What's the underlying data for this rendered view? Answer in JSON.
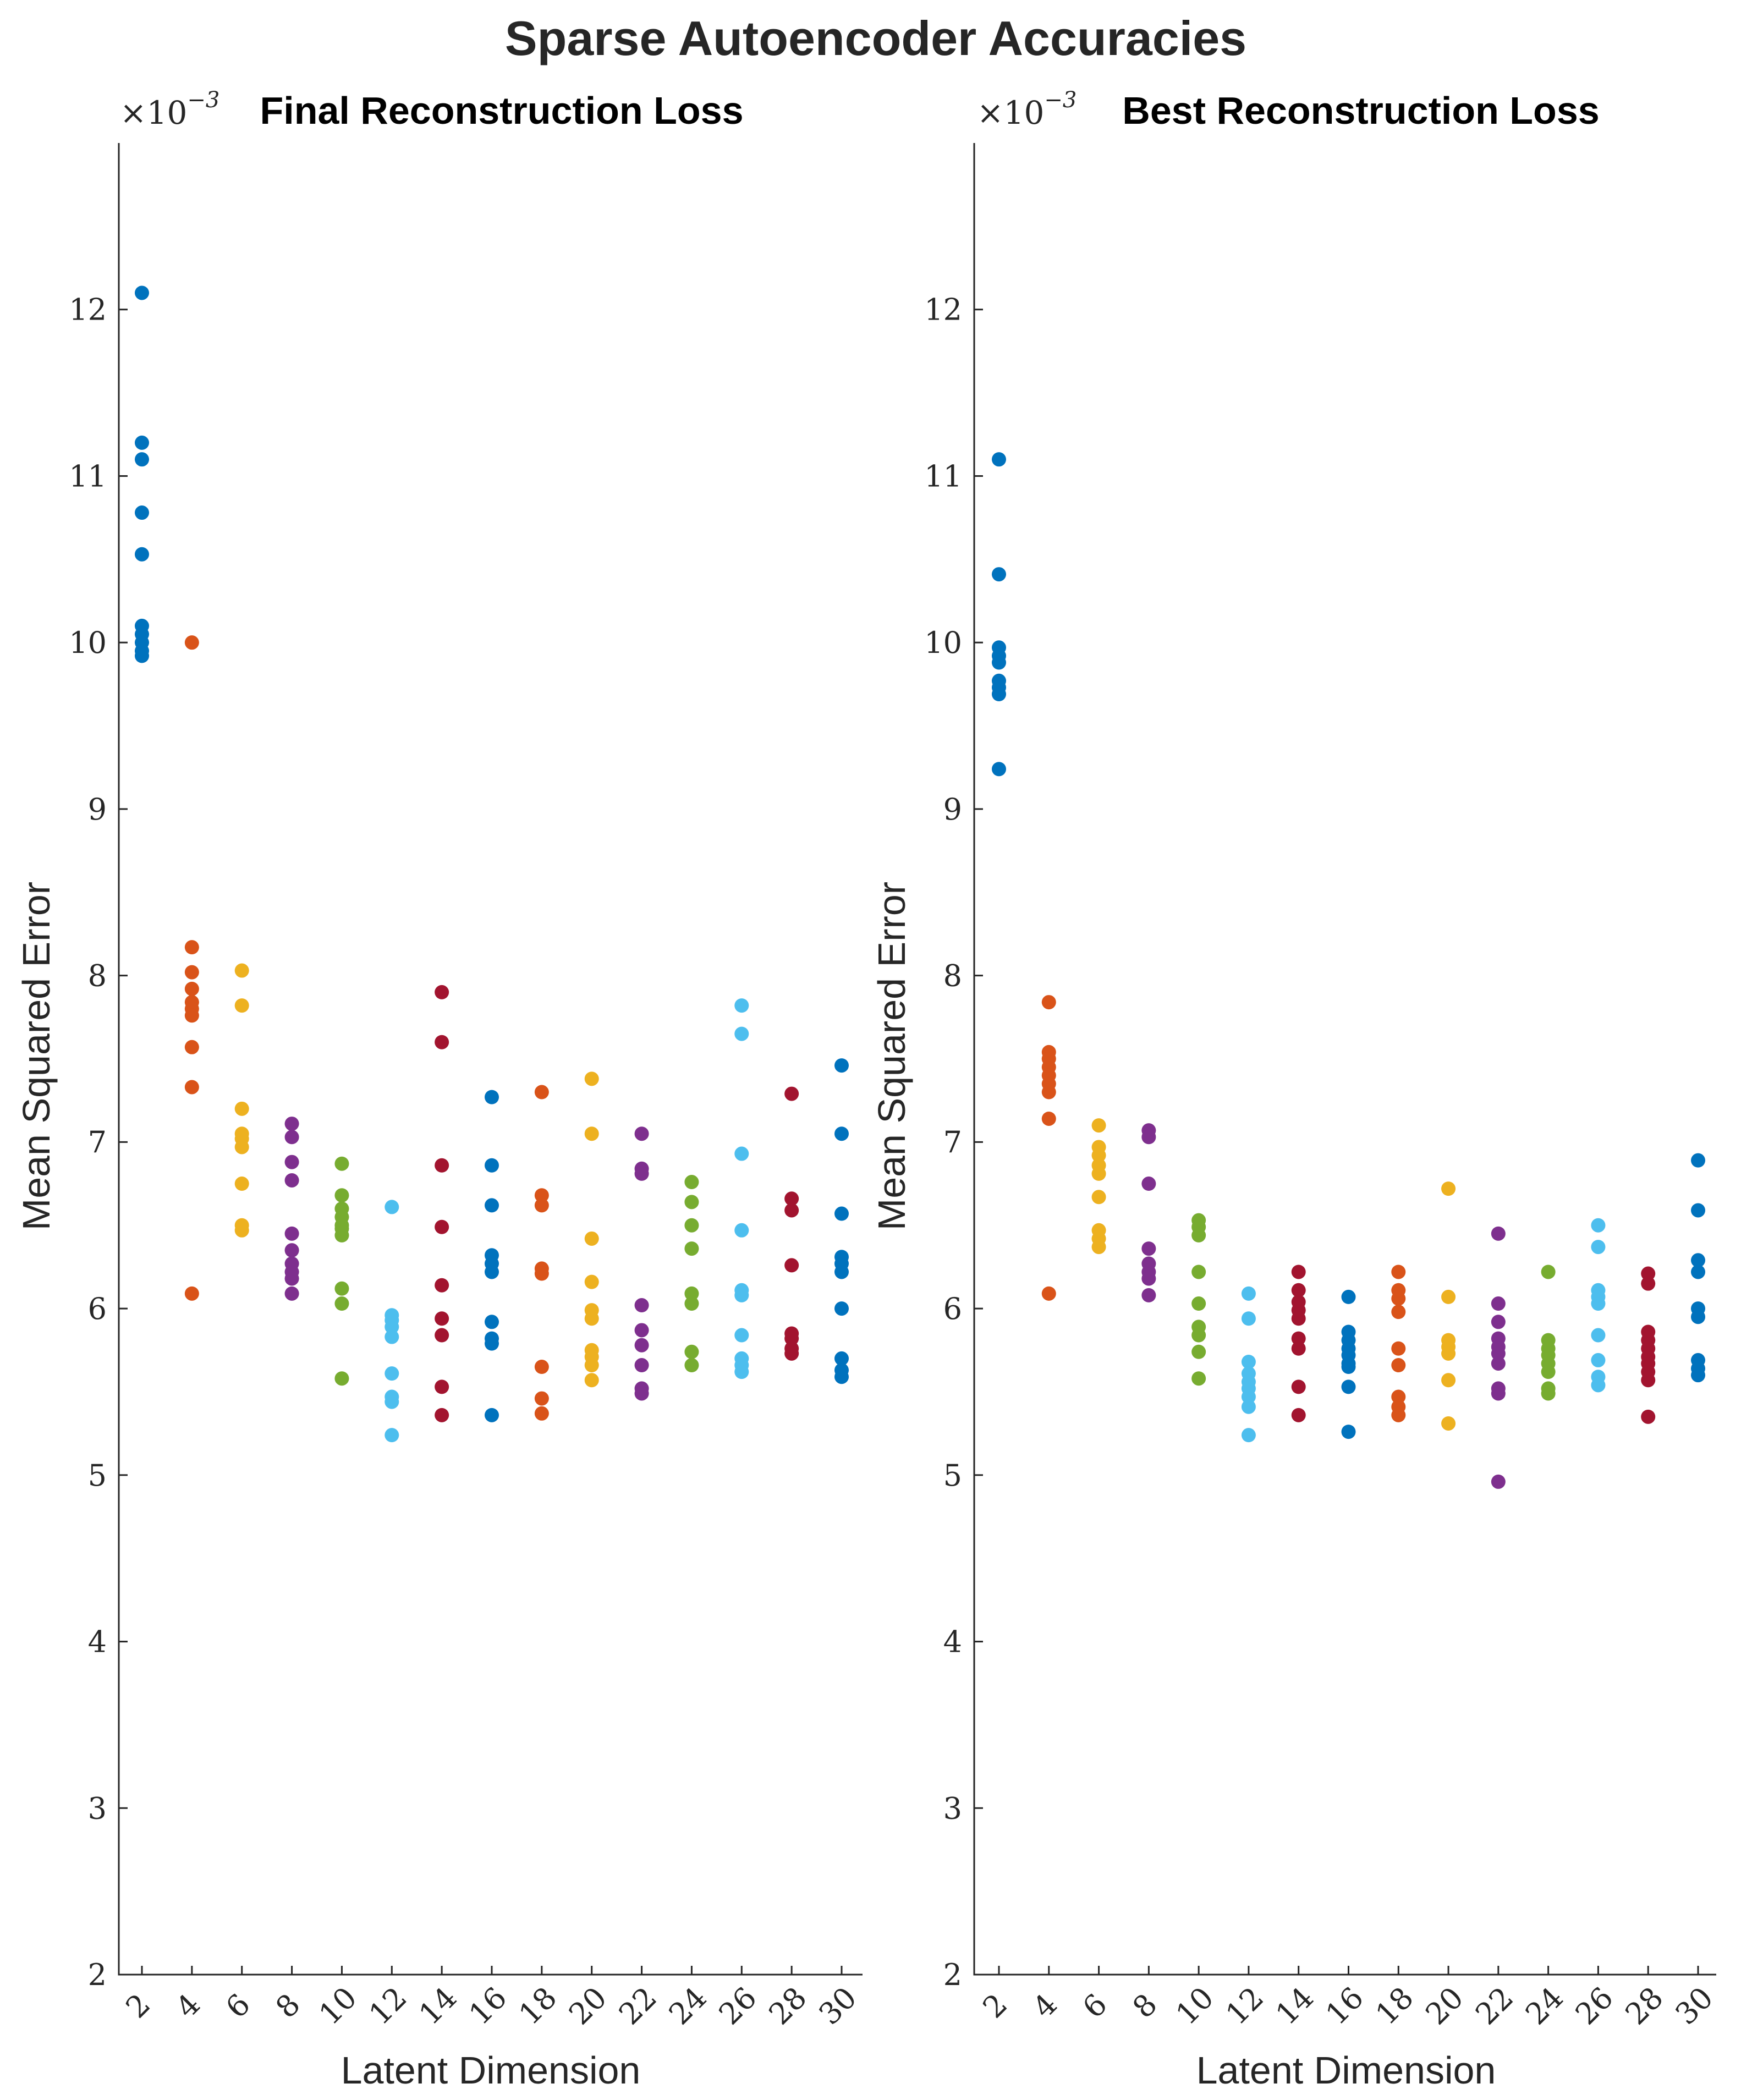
{
  "figure_title": "Sparse Autoencoder Accuracies",
  "colors": [
    "#0072BD",
    "#D95319",
    "#EDB120",
    "#7E2F8E",
    "#77AC30",
    "#4DBEEE",
    "#A2142F"
  ],
  "chart_data": [
    {
      "type": "scatter",
      "title": "Final Reconstruction Loss",
      "xlabel": "Latent Dimension",
      "ylabel": "Mean Squared Error",
      "exponent_base": "×10",
      "exponent_power": "−3",
      "ylim": [
        2,
        13
      ],
      "yticks": [
        "2",
        "3",
        "4",
        "5",
        "6",
        "7",
        "8",
        "9",
        "10",
        "11",
        "12"
      ],
      "xticks": [
        "2",
        "4",
        "6",
        "8",
        "10",
        "12",
        "14",
        "16",
        "18",
        "20",
        "22",
        "24",
        "26",
        "28",
        "30"
      ],
      "grid": false,
      "series": [
        {
          "x": 2,
          "values": [
            12.1,
            11.2,
            11.1,
            10.78,
            10.53,
            10.1,
            10.05,
            10.0,
            9.95,
            9.92
          ]
        },
        {
          "x": 4,
          "values": [
            10.0,
            8.17,
            8.02,
            7.92,
            7.84,
            7.8,
            7.76,
            7.57,
            7.33,
            6.09
          ]
        },
        {
          "x": 6,
          "values": [
            8.03,
            7.82,
            7.2,
            7.05,
            7.02,
            6.97,
            6.75,
            6.5,
            6.47
          ]
        },
        {
          "x": 8,
          "values": [
            7.11,
            7.03,
            6.88,
            6.77,
            6.45,
            6.35,
            6.27,
            6.22,
            6.18,
            6.09
          ]
        },
        {
          "x": 10,
          "values": [
            6.87,
            6.68,
            6.6,
            6.55,
            6.5,
            6.48,
            6.44,
            6.12,
            6.03,
            5.58
          ]
        },
        {
          "x": 12,
          "values": [
            6.61,
            5.96,
            5.93,
            5.89,
            5.83,
            5.61,
            5.47,
            5.44,
            5.24
          ]
        },
        {
          "x": 14,
          "values": [
            7.9,
            7.6,
            6.86,
            6.49,
            6.14,
            5.94,
            5.84,
            5.53,
            5.36
          ]
        },
        {
          "x": 16,
          "values": [
            7.27,
            6.86,
            6.62,
            6.32,
            6.27,
            6.22,
            5.92,
            5.82,
            5.79,
            5.36
          ]
        },
        {
          "x": 18,
          "values": [
            7.3,
            6.68,
            6.62,
            6.24,
            6.21,
            5.65,
            5.46,
            5.37
          ]
        },
        {
          "x": 20,
          "values": [
            7.38,
            7.05,
            6.42,
            6.16,
            5.99,
            5.94,
            5.75,
            5.71,
            5.66,
            5.57
          ]
        },
        {
          "x": 22,
          "values": [
            7.05,
            6.84,
            6.81,
            6.02,
            5.87,
            5.78,
            5.66,
            5.52,
            5.49
          ]
        },
        {
          "x": 24,
          "values": [
            6.76,
            6.64,
            6.5,
            6.36,
            6.09,
            6.03,
            5.74,
            5.66
          ]
        },
        {
          "x": 26,
          "values": [
            7.82,
            7.65,
            6.93,
            6.47,
            6.11,
            6.08,
            5.84,
            5.7,
            5.66,
            5.62
          ]
        },
        {
          "x": 28,
          "values": [
            7.29,
            6.66,
            6.59,
            6.26,
            5.85,
            5.82,
            5.76,
            5.73
          ]
        },
        {
          "x": 30,
          "values": [
            7.46,
            7.05,
            6.57,
            6.31,
            6.27,
            6.22,
            6.0,
            5.7,
            5.63,
            5.59
          ]
        }
      ]
    },
    {
      "type": "scatter",
      "title": "Best Reconstruction Loss",
      "xlabel": "Latent Dimension",
      "ylabel": "Mean Squared Error",
      "exponent_base": "×10",
      "exponent_power": "−3",
      "ylim": [
        2,
        13
      ],
      "yticks": [
        "2",
        "3",
        "4",
        "5",
        "6",
        "7",
        "8",
        "9",
        "10",
        "11",
        "12"
      ],
      "xticks": [
        "2",
        "4",
        "6",
        "8",
        "10",
        "12",
        "14",
        "16",
        "18",
        "20",
        "22",
        "24",
        "26",
        "28",
        "30"
      ],
      "grid": false,
      "series": [
        {
          "x": 2,
          "values": [
            11.1,
            10.41,
            9.97,
            9.92,
            9.88,
            9.77,
            9.73,
            9.69,
            9.24
          ]
        },
        {
          "x": 4,
          "values": [
            7.84,
            7.54,
            7.5,
            7.45,
            7.4,
            7.35,
            7.3,
            7.14,
            6.09
          ]
        },
        {
          "x": 6,
          "values": [
            7.1,
            6.97,
            6.92,
            6.86,
            6.81,
            6.67,
            6.47,
            6.42,
            6.37
          ]
        },
        {
          "x": 8,
          "values": [
            7.07,
            7.03,
            6.75,
            6.36,
            6.27,
            6.22,
            6.18,
            6.08
          ]
        },
        {
          "x": 10,
          "values": [
            6.53,
            6.49,
            6.44,
            6.22,
            6.03,
            5.89,
            5.84,
            5.74,
            5.58
          ]
        },
        {
          "x": 12,
          "values": [
            6.09,
            5.94,
            5.68,
            5.61,
            5.56,
            5.52,
            5.47,
            5.41,
            5.24
          ]
        },
        {
          "x": 14,
          "values": [
            6.22,
            6.11,
            6.04,
            5.99,
            5.94,
            5.82,
            5.76,
            5.53,
            5.36
          ]
        },
        {
          "x": 16,
          "values": [
            6.07,
            5.86,
            5.81,
            5.76,
            5.72,
            5.67,
            5.65,
            5.53,
            5.26
          ]
        },
        {
          "x": 18,
          "values": [
            6.22,
            6.11,
            6.06,
            5.98,
            5.76,
            5.66,
            5.47,
            5.41,
            5.36
          ]
        },
        {
          "x": 20,
          "values": [
            6.72,
            6.07,
            5.81,
            5.77,
            5.73,
            5.57,
            5.31
          ]
        },
        {
          "x": 22,
          "values": [
            6.45,
            6.03,
            5.92,
            5.82,
            5.77,
            5.73,
            5.67,
            5.52,
            5.49,
            4.96
          ]
        },
        {
          "x": 24,
          "values": [
            6.22,
            5.81,
            5.76,
            5.72,
            5.67,
            5.62,
            5.52,
            5.49
          ]
        },
        {
          "x": 26,
          "values": [
            6.5,
            6.37,
            6.11,
            6.07,
            6.03,
            5.84,
            5.69,
            5.59,
            5.54
          ]
        },
        {
          "x": 28,
          "values": [
            6.21,
            6.15,
            5.86,
            5.81,
            5.76,
            5.71,
            5.67,
            5.62,
            5.57,
            5.35
          ]
        },
        {
          "x": 30,
          "values": [
            6.89,
            6.59,
            6.29,
            6.22,
            6.0,
            5.95,
            5.69,
            5.64,
            5.6
          ]
        }
      ]
    }
  ]
}
